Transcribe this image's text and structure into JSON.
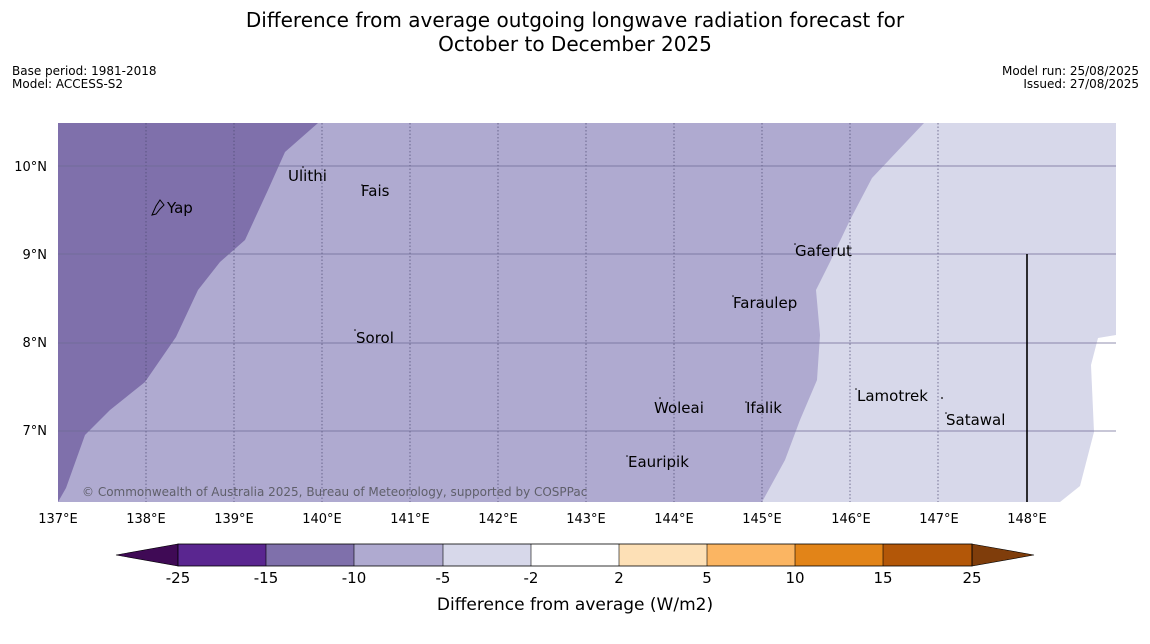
{
  "title_line1": "Difference from average outgoing longwave radiation forecast for",
  "title_line2": "October to December 2025",
  "base_period": "Base period: 1981-2018",
  "model": "Model: ACCESS-S2",
  "model_run": "Model run: 25/08/2025",
  "issued": "Issued: 27/08/2025",
  "copyright": "© Commonwealth of Australia 2025, Bureau of Meteorology, supported by COSPPac",
  "lon_ticks": [
    "137°E",
    "138°E",
    "139°E",
    "140°E",
    "141°E",
    "142°E",
    "143°E",
    "144°E",
    "145°E",
    "146°E",
    "147°E",
    "148°E"
  ],
  "lat_ticks": [
    "10°N",
    "9°N",
    "8°N",
    "7°N"
  ],
  "places": [
    "Ulithi",
    "Fais",
    "Yap",
    "Gaferut",
    "Faraulep",
    "Sorol",
    "Lamotrek",
    "Woleai",
    "Ifalik",
    "Satawal",
    "Eauripik"
  ],
  "colorbar": {
    "label": "Difference from average (W/m2)",
    "ticks": [
      "-25",
      "-15",
      "-10",
      "-5",
      "-2",
      "2",
      "5",
      "10",
      "15",
      "25"
    ],
    "colors": [
      "#3f0a55",
      "#5a2690",
      "#7f70ab",
      "#afaad0",
      "#d7d8ea",
      "#ffffff",
      "#fde0b6",
      "#fbb562",
      "#e28418",
      "#b35708",
      "#7f3d0b"
    ]
  },
  "legend_colors": {
    "lt_-10": "#7f70ab",
    "-10_to_-5": "#afaad0",
    "-5_to_-2": "#d7d8ea"
  }
}
